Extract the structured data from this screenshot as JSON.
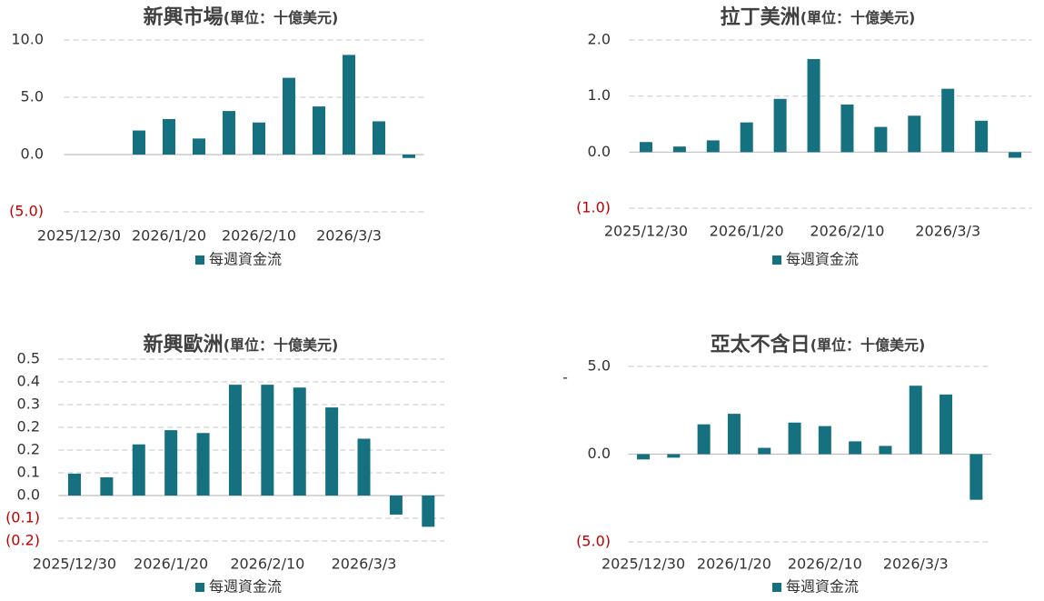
{
  "chart_data": [
    {
      "type": "bar",
      "title": "新興市場",
      "unit": "(單位：十億美元)",
      "categories": [
        "2025/12/30",
        null,
        null,
        "2026/1/20",
        null,
        null,
        "2026/2/10",
        null,
        null,
        "2026/3/3",
        null,
        null
      ],
      "series": [
        {
          "name": "每週資金流",
          "color": "#15707f",
          "values": [
            null,
            null,
            2.1,
            3.1,
            1.4,
            3.8,
            2.8,
            6.7,
            4.2,
            8.7,
            2.9,
            -0.3
          ]
        }
      ],
      "ylim": [
        -5,
        10
      ],
      "yticks": [
        {
          "value": 10,
          "label": "10.0"
        },
        {
          "value": 5,
          "label": "5.0"
        },
        {
          "value": 0,
          "label": "0.0"
        },
        {
          "value": -5,
          "label": "(5.0)"
        }
      ],
      "grid": true,
      "negative_tick_color": "#c00000",
      "legend": "bottom"
    },
    {
      "type": "bar",
      "title": "拉丁美洲",
      "unit": "(單位：十億美元)",
      "categories": [
        "2025/12/30",
        null,
        null,
        "2026/1/20",
        null,
        null,
        "2026/2/10",
        null,
        null,
        "2026/3/3",
        null,
        null
      ],
      "series": [
        {
          "name": "每週資金流",
          "color": "#15707f",
          "values": [
            0.18,
            0.1,
            0.21,
            0.53,
            0.95,
            1.66,
            0.85,
            0.45,
            0.65,
            1.13,
            0.56,
            -0.1
          ]
        }
      ],
      "ylim": [
        -1,
        2
      ],
      "yticks": [
        {
          "value": 2,
          "label": "2.0"
        },
        {
          "value": 1,
          "label": "1.0"
        },
        {
          "value": 0,
          "label": "0.0"
        },
        {
          "value": -1,
          "label": "(1.0)"
        }
      ],
      "grid": true,
      "negative_tick_color": "#c00000",
      "legend": "bottom"
    },
    {
      "type": "bar",
      "title": "新興歐洲",
      "unit": "(單位：十億美元)",
      "categories": [
        "2025/12/30",
        null,
        null,
        "2026/1/20",
        null,
        null,
        "2026/2/10",
        null,
        null,
        "2026/3/3",
        null,
        null
      ],
      "series": [
        {
          "name": "每週資金流",
          "color": "#15707f",
          "values": [
            0.077,
            0.064,
            0.18,
            0.23,
            0.22,
            0.39,
            0.39,
            0.38,
            0.31,
            0.2,
            -0.067,
            -0.11
          ]
        }
      ],
      "ylim": [
        -0.16,
        0.48
      ],
      "yticks": [
        {
          "value": 0.48,
          "label": "0.5"
        },
        {
          "value": 0.4,
          "label": "0.4"
        },
        {
          "value": 0.32,
          "label": "0.3"
        },
        {
          "value": 0.24,
          "label": "0.2"
        },
        {
          "value": 0.16,
          "label": "0.2"
        },
        {
          "value": 0.08,
          "label": "0.1"
        },
        {
          "value": 0,
          "label": "0.0"
        },
        {
          "value": -0.08,
          "label": "(0.1)"
        },
        {
          "value": -0.16,
          "label": "(0.2)"
        }
      ],
      "grid": true,
      "negative_tick_color": "#c00000",
      "legend": "bottom"
    },
    {
      "type": "bar",
      "title": "亞太不含日",
      "unit": "(單位：十億美元)",
      "y_label": "-",
      "categories": [
        "2025/12/30",
        null,
        null,
        "2026/1/20",
        null,
        null,
        "2026/2/10",
        null,
        null,
        "2026/3/3",
        null,
        null
      ],
      "series": [
        {
          "name": "每週資金流",
          "color": "#15707f",
          "values": [
            -0.3,
            -0.2,
            1.7,
            2.3,
            0.36,
            1.8,
            1.6,
            0.73,
            0.47,
            3.9,
            3.4,
            -2.6
          ]
        }
      ],
      "ylim": [
        -5,
        5
      ],
      "yticks": [
        {
          "value": 5,
          "label": "5.0"
        },
        {
          "value": 0,
          "label": "0.0"
        },
        {
          "value": -5,
          "label": "(5.0)"
        }
      ],
      "grid": true,
      "negative_tick_color": "#c00000",
      "legend": "bottom"
    }
  ]
}
